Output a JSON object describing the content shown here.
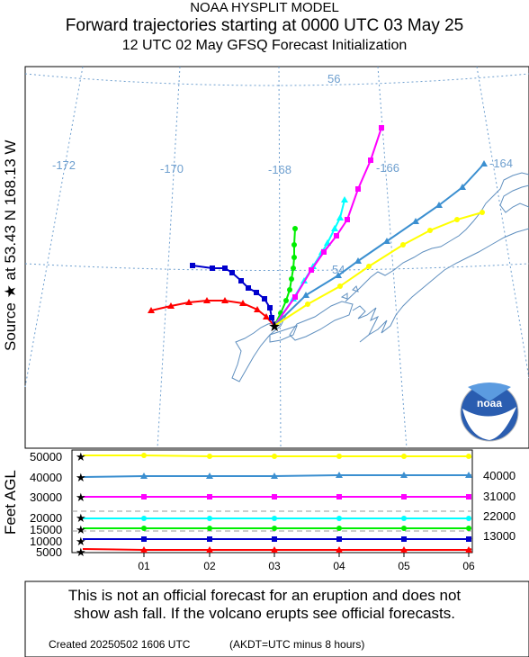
{
  "header": {
    "model": "NOAA HYSPLIT MODEL",
    "title": "Forward trajectories starting at 0000 UTC 03 May 25",
    "subtitle": "12 UTC 02 May    GFSQ  Forecast Initialization"
  },
  "source_label": "Source ★ at   53.43 N  168.13 W",
  "map": {
    "longitude_labels": [
      "-172",
      "-170",
      "-168",
      "-166",
      "-164"
    ],
    "latitude_labels": [
      "56",
      "54"
    ],
    "logo_text": "noaa"
  },
  "profile": {
    "y_axis_label": "Feet AGL",
    "left_ticks": [
      "50000",
      "40000",
      "30000",
      "20000",
      "15000",
      "10000",
      "5000"
    ],
    "right_labels": [
      "40000",
      "31000",
      "22000",
      "13000"
    ],
    "x_ticks": [
      "01",
      "02",
      "03",
      "04",
      "05",
      "06"
    ]
  },
  "colors": {
    "red": "#ff0000",
    "blue": "#0000cc",
    "green": "#00ee00",
    "cyan": "#00ffff",
    "magenta": "#ff00ff",
    "steelblue": "#3b8fd0",
    "yellow": "#ffff00",
    "land": "#5f8fbf",
    "graticule": "#6e9fcf"
  },
  "disclaimer": [
    "This is not an official forecast for an eruption and does not",
    "show ash fall. If the volcano erupts see official forecasts."
  ],
  "footer": {
    "created": "Created 20250502 1606 UTC",
    "note": "(AKDT=UTC minus 8 hours)"
  }
}
